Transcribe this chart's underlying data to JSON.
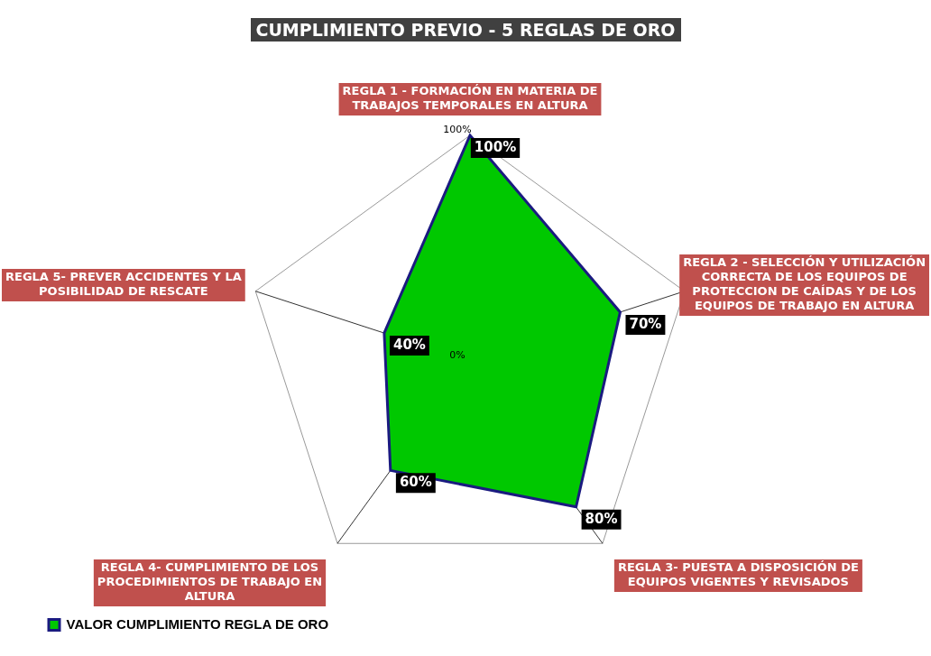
{
  "chart_data": {
    "type": "radar",
    "title": "CUMPLIMIENTO PREVIO - 5 REGLAS DE ORO",
    "categories": [
      "REGLA 1 - FORMACIÓN EN MATERIA DE TRABAJOS TEMPORALES EN ALTURA",
      "REGLA 2 - SELECCIÓN Y UTILIZACIÓN CORRECTA DE LOS EQUIPOS DE PROTECCION DE CAÍDAS Y DE LOS EQUIPOS DE TRABAJO EN ALTURA",
      "REGLA 3- PUESTA A DISPOSICIÓN DE EQUIPOS VIGENTES Y REVISADOS",
      "REGLA 4- CUMPLIMIENTO DE LOS PROCEDIMIENTOS DE TRABAJO EN ALTURA",
      "REGLA 5- PREVER ACCIDENTES Y LA POSIBILIDAD DE RESCATE"
    ],
    "series": [
      {
        "name": "VALOR CUMPLIMIENTO REGLA DE ORO",
        "color": "#00c800",
        "values": [
          100,
          70,
          80,
          60,
          40
        ],
        "value_labels": [
          "100%",
          "70%",
          "80%",
          "60%",
          "40%"
        ]
      }
    ],
    "ylim": [
      0,
      100
    ],
    "yticks": [
      {
        "value": 0,
        "label": "0%"
      },
      {
        "value": 100,
        "label": "100%"
      }
    ],
    "grid": true,
    "legend": "bottom left",
    "marker": "none"
  }
}
